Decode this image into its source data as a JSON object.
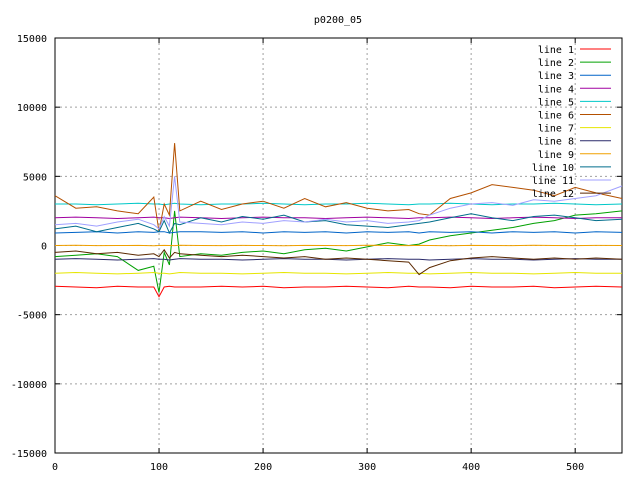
{
  "chart_data": {
    "type": "line",
    "title": "p0200_05",
    "xlabel": "",
    "ylabel": "",
    "xlim": [
      0,
      545
    ],
    "ylim": [
      -15000,
      15000
    ],
    "x_ticks": [
      "0",
      "100",
      "200",
      "300",
      "400",
      "500"
    ],
    "y_ticks": [
      "15000",
      "10000",
      "5000",
      "0",
      "-5000",
      "-10000",
      "-15000"
    ],
    "grid": true,
    "legend_position": "top-right",
    "x": [
      0,
      20,
      40,
      60,
      80,
      95,
      100,
      105,
      110,
      115,
      120,
      140,
      160,
      180,
      200,
      220,
      240,
      260,
      280,
      300,
      320,
      340,
      350,
      360,
      380,
      400,
      420,
      440,
      460,
      480,
      500,
      520,
      545
    ],
    "series": [
      {
        "name": "line 1",
        "color": "#ff0000",
        "values": [
          -2950,
          -3000,
          -3050,
          -2950,
          -3000,
          -3000,
          -3700,
          -3000,
          -2950,
          -3000,
          -3000,
          -3000,
          -2950,
          -3000,
          -2950,
          -3050,
          -3000,
          -3000,
          -2950,
          -3000,
          -3050,
          -2950,
          -3000,
          -3000,
          -3050,
          -2950,
          -3000,
          -3000,
          -2950,
          -3050,
          -3000,
          -2950,
          -3000
        ]
      },
      {
        "name": "line 2",
        "color": "#00a000",
        "values": [
          -800,
          -700,
          -600,
          -800,
          -1800,
          -1500,
          -3400,
          -500,
          -1400,
          2500,
          -800,
          -600,
          -700,
          -500,
          -400,
          -600,
          -300,
          -200,
          -400,
          -100,
          200,
          0,
          100,
          400,
          700,
          900,
          1100,
          1300,
          1600,
          1800,
          2200,
          2300,
          2500
        ]
      },
      {
        "name": "line 3",
        "color": "#0064c8",
        "values": [
          900,
          950,
          1000,
          900,
          1000,
          950,
          1000,
          1000,
          900,
          950,
          1000,
          1000,
          950,
          1000,
          900,
          1000,
          950,
          1000,
          900,
          1000,
          950,
          1000,
          900,
          1000,
          950,
          1000,
          900,
          1000,
          950,
          1000,
          900,
          1000,
          950
        ]
      },
      {
        "name": "line 4",
        "color": "#a000a0",
        "values": [
          2000,
          2050,
          2000,
          1950,
          2000,
          2050,
          2000,
          2000,
          1950,
          2000,
          2050,
          2000,
          1950,
          2000,
          2050,
          2000,
          2000,
          1950,
          2000,
          2050,
          2000,
          1950,
          2000,
          2000,
          2050,
          2000,
          1950,
          2000,
          2050,
          2000,
          1950,
          2000,
          2000
        ]
      },
      {
        "name": "line 5",
        "color": "#00c8c8",
        "values": [
          3000,
          3000,
          2950,
          3000,
          3050,
          3000,
          3000,
          2950,
          3000,
          3050,
          3000,
          2950,
          3000,
          3000,
          3050,
          3000,
          2950,
          3000,
          3000,
          3050,
          3000,
          2950,
          3000,
          3000,
          3050,
          3000,
          2950,
          3000,
          3000,
          3050,
          3000,
          2950,
          3000
        ]
      },
      {
        "name": "line 6",
        "color": "#b45000",
        "values": [
          3600,
          2700,
          2800,
          2500,
          2300,
          3500,
          1000,
          3000,
          2200,
          7400,
          2500,
          3200,
          2600,
          3000,
          3200,
          2700,
          3400,
          2800,
          3100,
          2700,
          2500,
          2600,
          2300,
          2200,
          3400,
          3800,
          4400,
          4200,
          4000,
          3600,
          4200,
          3800,
          3400
        ]
      },
      {
        "name": "line 7",
        "color": "#e6e600",
        "values": [
          -2000,
          -1950,
          -2000,
          -2050,
          -2000,
          -1950,
          -2000,
          -2000,
          -2050,
          -2000,
          -1950,
          -2000,
          -2000,
          -2050,
          -2000,
          -1950,
          -2000,
          -2000,
          -2050,
          -2000,
          -1950,
          -2000,
          -2000,
          -2050,
          -2000,
          -1950,
          -2000,
          -2000,
          -2050,
          -2000,
          -1950,
          -2000,
          -2000
        ]
      },
      {
        "name": "line 8",
        "color": "#2a2a6a",
        "values": [
          -1000,
          -950,
          -1000,
          -1050,
          -1000,
          -950,
          -1000,
          -1000,
          -1050,
          -1000,
          -950,
          -1000,
          -1000,
          -1050,
          -1000,
          -950,
          -1000,
          -1000,
          -1050,
          -1000,
          -950,
          -1000,
          -1000,
          -1050,
          -1000,
          -950,
          -1000,
          -1000,
          -1050,
          -1000,
          -950,
          -1000,
          -1000
        ]
      },
      {
        "name": "line 9",
        "color": "#f0a000",
        "values": [
          0,
          20,
          -10,
          0,
          10,
          -20,
          0,
          10,
          0,
          -10,
          20,
          0,
          -10,
          10,
          0,
          -20,
          10,
          0,
          -10,
          20,
          0,
          -10,
          10,
          0,
          -20,
          10,
          0,
          -10,
          20,
          0,
          -10,
          10,
          0
        ]
      },
      {
        "name": "line 10",
        "color": "#006e8c",
        "values": [
          1200,
          1400,
          1000,
          1300,
          1600,
          1200,
          1000,
          1800,
          900,
          1600,
          1500,
          2000,
          1700,
          2100,
          1900,
          2200,
          1700,
          1800,
          1500,
          1400,
          1300,
          1500,
          1600,
          1700,
          2000,
          2300,
          2000,
          1800,
          2100,
          2200,
          2000,
          1800,
          1900
        ]
      },
      {
        "name": "line 11",
        "color": "#a0a0ff",
        "values": [
          1500,
          1600,
          1400,
          1700,
          1900,
          1500,
          1200,
          2100,
          1400,
          5000,
          1700,
          1600,
          1500,
          1700,
          1600,
          1800,
          1700,
          1900,
          1700,
          1800,
          1600,
          1700,
          1800,
          2200,
          2700,
          3000,
          3100,
          2900,
          3300,
          3200,
          3400,
          3600,
          4300
        ]
      },
      {
        "name": "line 12",
        "color": "#5a2800",
        "values": [
          -500,
          -400,
          -600,
          -500,
          -700,
          -600,
          -800,
          -300,
          -900,
          -500,
          -600,
          -700,
          -800,
          -700,
          -800,
          -900,
          -800,
          -1000,
          -900,
          -1000,
          -1100,
          -1200,
          -2100,
          -1600,
          -1100,
          -900,
          -800,
          -900,
          -1000,
          -900,
          -1000,
          -900,
          -1000
        ]
      }
    ]
  }
}
